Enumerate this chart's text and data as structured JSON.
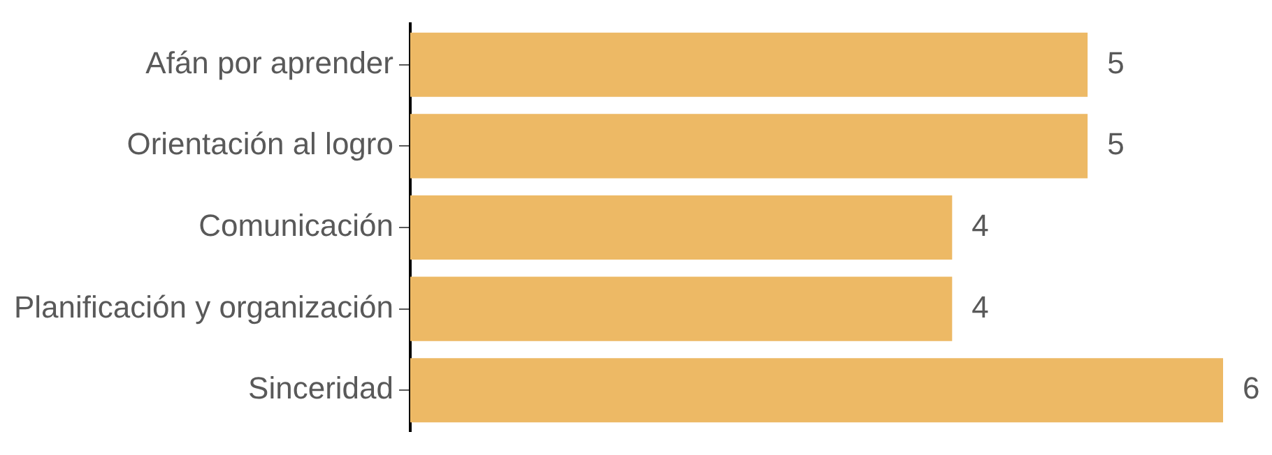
{
  "chart_data": {
    "type": "bar",
    "orientation": "horizontal",
    "categories": [
      "Afán por aprender",
      "Orientación al logro",
      "Comunicación",
      "Planificación y organización",
      "Sinceridad"
    ],
    "values": [
      5,
      5,
      4,
      4,
      6
    ],
    "color": "#edb965",
    "xlim": [
      0,
      6
    ],
    "data_labels": true,
    "tick_labels": "y",
    "grid": false,
    "legend": false
  }
}
